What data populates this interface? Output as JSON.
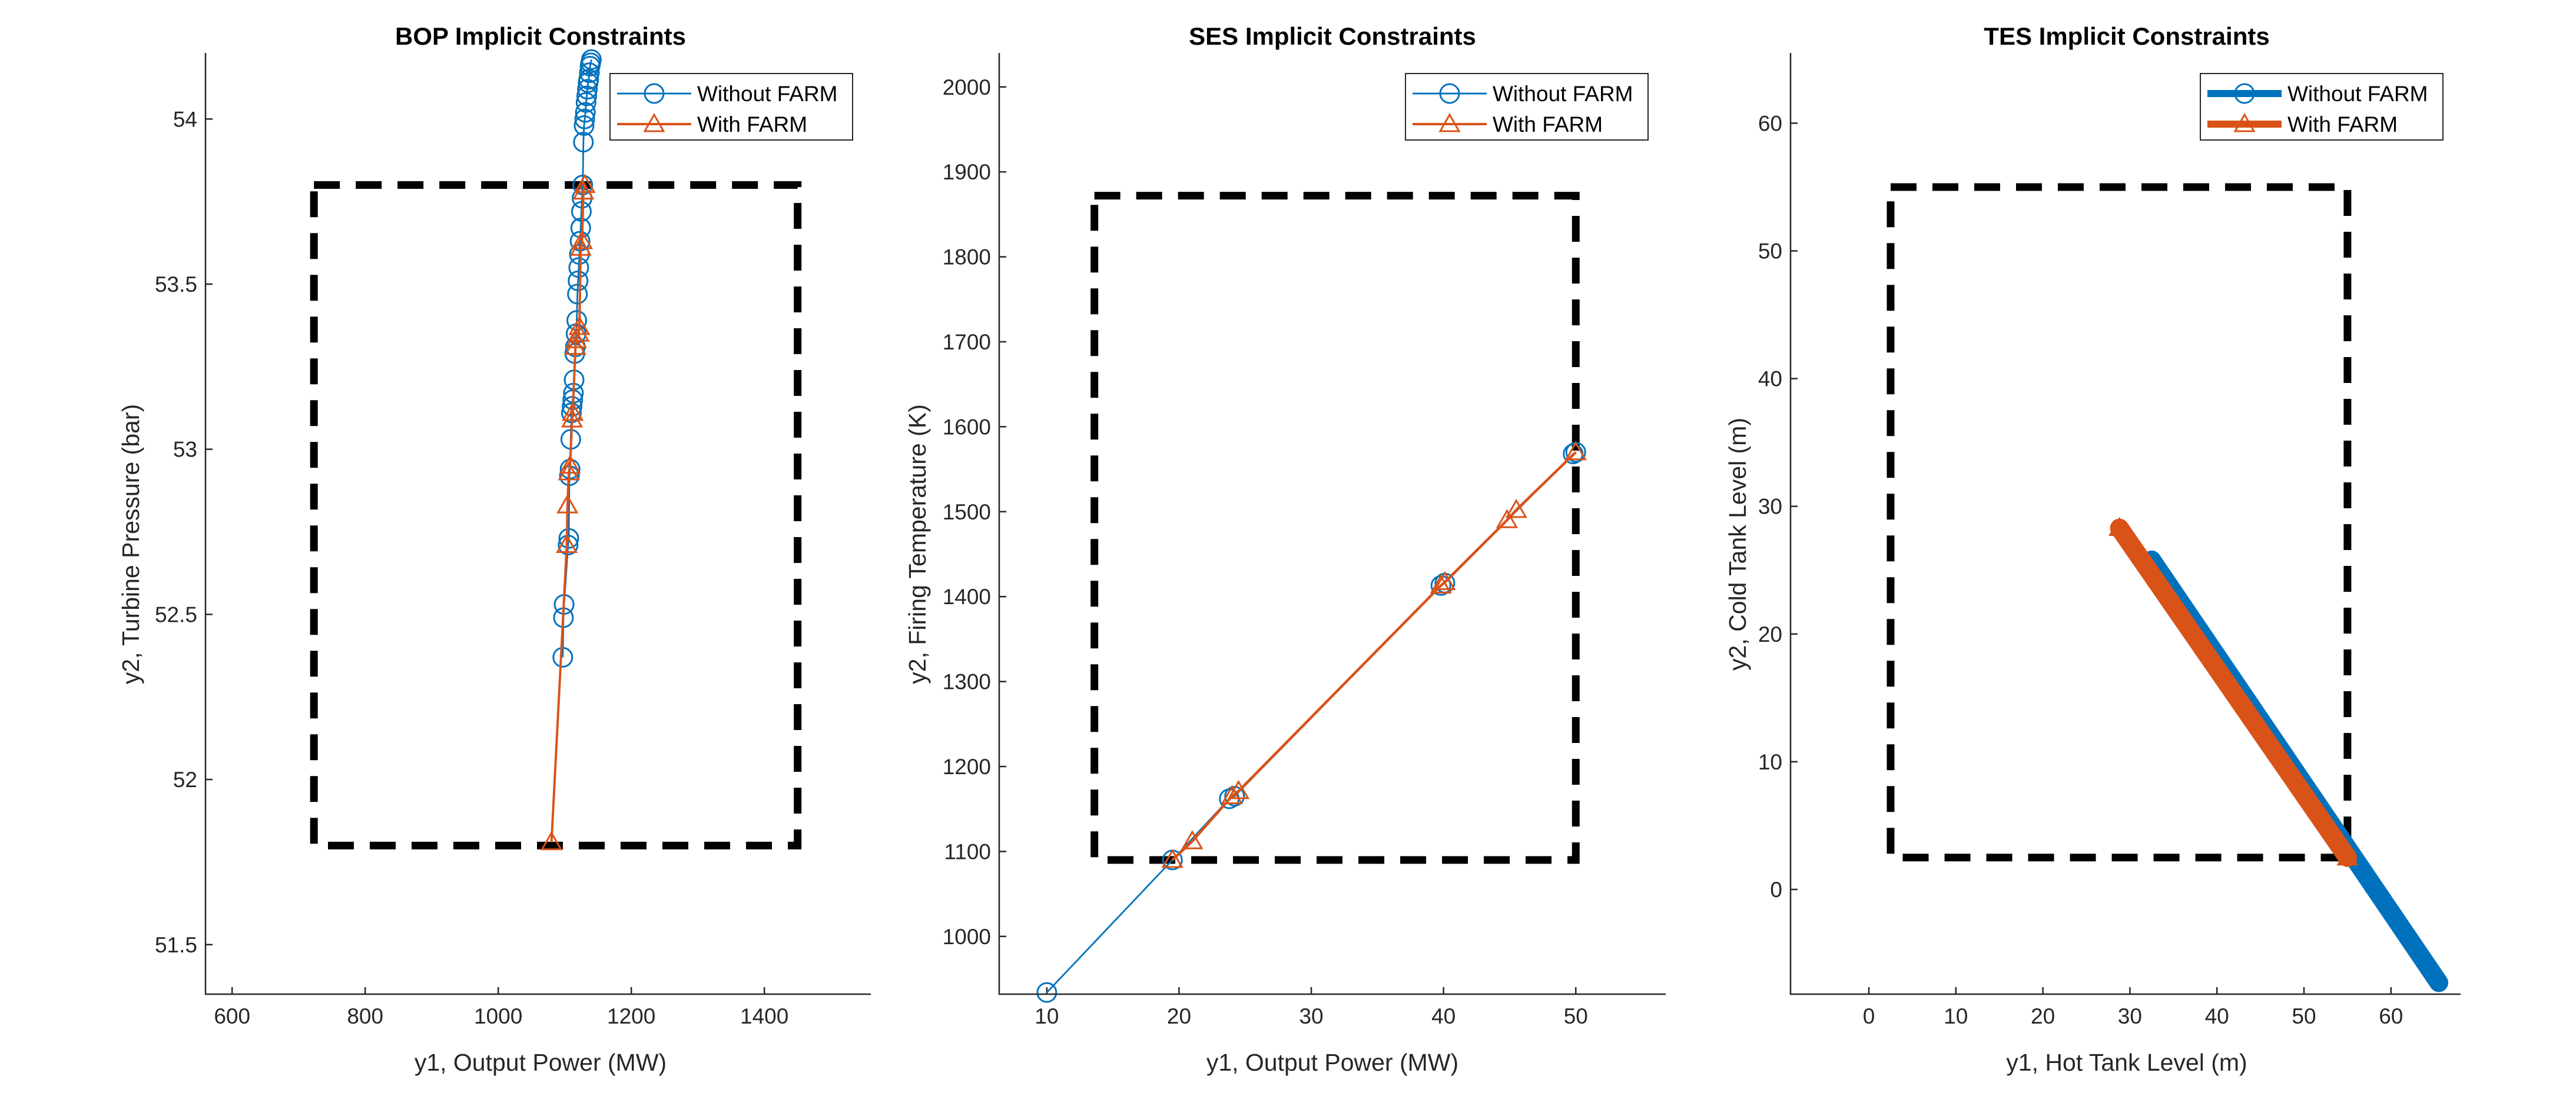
{
  "figure": {
    "background": "#ffffff"
  },
  "colors": {
    "without_farm": "#0072BD",
    "with_farm": "#D95319",
    "constraint_box": "#000000",
    "axis": "#262626"
  },
  "chart_data": [
    {
      "type": "line",
      "title": "BOP Implicit Constraints",
      "xlabel": "y1, Output Power (MW)",
      "ylabel": "y2, Turbine Pressure (bar)",
      "xlim": [
        560,
        1560
      ],
      "ylim": [
        51.35,
        54.2
      ],
      "xticks": [
        600,
        800,
        1000,
        1200,
        1400
      ],
      "yticks": [
        51.5,
        52,
        52.5,
        53,
        53.5,
        54
      ],
      "xtick_labels": [
        "600",
        "800",
        "1000",
        "1200",
        "1400"
      ],
      "ytick_labels": [
        "51.5",
        "52",
        "52.5",
        "53",
        "53.5",
        "54"
      ],
      "grid": false,
      "legend_position": "top-right",
      "constraint_box": {
        "x": [
          723,
          1450
        ],
        "y": [
          51.8,
          53.8
        ]
      },
      "series": [
        {
          "name": "Without FARM",
          "marker": "circle",
          "line_width": 1,
          "x": [
            1097,
            1098,
            1099,
            1105,
            1106,
            1107,
            1108,
            1109,
            1110,
            1111,
            1112,
            1113,
            1114,
            1115,
            1116,
            1117,
            1118,
            1119,
            1120,
            1121,
            1122,
            1123,
            1124,
            1125,
            1126,
            1127,
            1128,
            1129,
            1130,
            1131,
            1132,
            1133,
            1134,
            1135,
            1136,
            1137,
            1138,
            1139,
            1140
          ],
          "y": [
            52.37,
            52.49,
            52.53,
            52.71,
            52.73,
            52.92,
            52.94,
            53.03,
            53.11,
            53.13,
            53.15,
            53.17,
            53.21,
            53.29,
            53.31,
            53.35,
            53.39,
            53.47,
            53.51,
            53.55,
            53.59,
            53.63,
            53.67,
            53.72,
            53.76,
            53.8,
            53.93,
            53.98,
            54.0,
            54.02,
            54.05,
            54.07,
            54.09,
            54.11,
            54.12,
            54.14,
            54.16,
            54.17,
            54.18
          ]
        },
        {
          "name": "With FARM",
          "marker": "triangle",
          "line_width": 1.4,
          "x": [
            1080,
            1103,
            1104,
            1106,
            1108,
            1111,
            1112,
            1116,
            1117,
            1121,
            1122,
            1124,
            1126,
            1128,
            1130
          ],
          "y": [
            51.81,
            52.71,
            52.83,
            52.93,
            52.95,
            53.09,
            53.11,
            53.31,
            53.33,
            53.35,
            53.37,
            53.61,
            53.63,
            53.78,
            53.8
          ]
        }
      ]
    },
    {
      "type": "line",
      "title": "SES Implicit Constraints",
      "xlabel": "y1, Output Power (MW)",
      "ylabel": "y2, Firing Temperature (K)",
      "xlim": [
        6.4,
        56.8
      ],
      "ylim": [
        932,
        2040
      ],
      "xticks": [
        10,
        20,
        30,
        40,
        50
      ],
      "yticks": [
        1000,
        1100,
        1200,
        1300,
        1400,
        1500,
        1600,
        1700,
        1800,
        1900,
        2000
      ],
      "xtick_labels": [
        "10",
        "20",
        "30",
        "40",
        "50"
      ],
      "ytick_labels": [
        "1000",
        "1100",
        "1200",
        "1300",
        "1400",
        "1500",
        "1600",
        "1700",
        "1800",
        "1900",
        "2000"
      ],
      "grid": false,
      "legend_position": "top-right",
      "constraint_box": {
        "x": [
          13.6,
          50
        ],
        "y": [
          1090,
          1872
        ]
      },
      "series": [
        {
          "name": "Without FARM",
          "marker": "circle",
          "line_width": 1,
          "x": [
            10,
            19.5,
            23.8,
            24.2,
            39.8,
            40.1,
            49.8,
            50
          ],
          "y": [
            934,
            1090,
            1162,
            1165,
            1413,
            1416,
            1568,
            1570
          ]
        },
        {
          "name": "With FARM",
          "marker": "triangle",
          "line_width": 1.6,
          "x": [
            19.5,
            21,
            24,
            24.5,
            39.8,
            40.1,
            44.8,
            45.5,
            50
          ],
          "y": [
            1090,
            1112,
            1165,
            1171,
            1413,
            1417,
            1490,
            1502,
            1570
          ]
        }
      ]
    },
    {
      "type": "line",
      "title": "TES Implicit Constraints",
      "xlabel": "y1, Hot Tank Level (m)",
      "ylabel": "y2, Cold Tank Level (m)",
      "xlim": [
        -9,
        68
      ],
      "ylim": [
        -8.2,
        65.5
      ],
      "xticks": [
        0,
        10,
        20,
        30,
        40,
        50,
        60
      ],
      "yticks": [
        0,
        10,
        20,
        30,
        40,
        50,
        60
      ],
      "xtick_labels": [
        "0",
        "10",
        "20",
        "30",
        "40",
        "50",
        "60"
      ],
      "ytick_labels": [
        "0",
        "10",
        "20",
        "30",
        "40",
        "50",
        "60"
      ],
      "grid": false,
      "legend_position": "top-right",
      "constraint_box": {
        "x": [
          2.5,
          55
        ],
        "y": [
          2.5,
          55
        ]
      },
      "series": [
        {
          "name": "Without FARM",
          "marker": "circle",
          "line_width": 32,
          "x": [
            32.5,
            65.5
          ],
          "y": [
            25.8,
            -7.3
          ]
        },
        {
          "name": "With FARM",
          "marker": "triangle",
          "line_width": 32,
          "x": [
            28.8,
            55
          ],
          "y": [
            28.3,
            2.5
          ]
        }
      ]
    }
  ]
}
